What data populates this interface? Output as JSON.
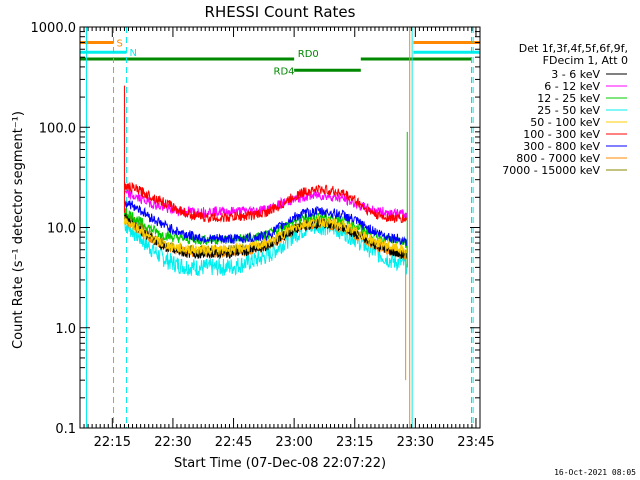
{
  "chart_data": {
    "type": "line",
    "title": "RHESSI Count Rates",
    "xlabel": "Start Time (07-Dec-08 22:07:22)",
    "ylabel": "Count Rate (s⁻¹ detector segment⁻¹)",
    "yscale": "log",
    "ylim": [
      0.1,
      1000
    ],
    "xlim_minutes": [
      0,
      99
    ],
    "x_ticks": [
      {
        "t": 8,
        "label": "22:15"
      },
      {
        "t": 23,
        "label": "22:30"
      },
      {
        "t": 38,
        "label": "22:45"
      },
      {
        "t": 53,
        "label": "23:00"
      },
      {
        "t": 68,
        "label": "23:15"
      },
      {
        "t": 83,
        "label": "23:30"
      },
      {
        "t": 98,
        "label": "23:45"
      }
    ],
    "y_ticks": [
      {
        "v": 0.1,
        "label": "0.1"
      },
      {
        "v": 1,
        "label": "1.0"
      },
      {
        "v": 10,
        "label": "10.0"
      },
      {
        "v": 100,
        "label": "100.0"
      },
      {
        "v": 1000,
        "label": "1000.0"
      }
    ],
    "time_axis_minutes": [
      11,
      14,
      17,
      20,
      23,
      26,
      29,
      32,
      35,
      38,
      41,
      44,
      47,
      50,
      53,
      56,
      59,
      62,
      65,
      68,
      71,
      74,
      77,
      80,
      81
    ],
    "series": [
      {
        "name": "3 - 6 keV",
        "color": "#000000",
        "values": [
          13,
          10,
          8.2,
          6.7,
          5.9,
          5.6,
          5.5,
          5.6,
          5.5,
          5.6,
          5.8,
          6.1,
          6.7,
          8,
          9.5,
          10.5,
          11,
          10.7,
          10,
          8.7,
          7.5,
          6.5,
          5.8,
          5.3,
          5.0
        ]
      },
      {
        "name": "6 - 12 keV",
        "color": "#ff00ff",
        "values": [
          22,
          20,
          18,
          16,
          15,
          14.5,
          14.3,
          14.4,
          14.5,
          14.5,
          14.6,
          14.8,
          15.5,
          17.5,
          19,
          20.5,
          21,
          20.5,
          19.5,
          17.5,
          15.5,
          14.5,
          14,
          13.5,
          13
        ]
      },
      {
        "name": "12 - 25 keV",
        "color": "#00cc00",
        "values": [
          15,
          12,
          10,
          8.6,
          8,
          7.7,
          7.5,
          7.6,
          7.5,
          7.6,
          7.8,
          8,
          8.6,
          10,
          11.5,
          12.5,
          13,
          12.5,
          12,
          10.5,
          9,
          8,
          7.5,
          7,
          6.8
        ]
      },
      {
        "name": "25 - 50 keV",
        "color": "#00eeee",
        "values": [
          11,
          8.5,
          6.5,
          5.1,
          4.4,
          4.1,
          4,
          4,
          4,
          4.1,
          4.4,
          4.8,
          5.4,
          6.8,
          8.4,
          9.8,
          10.4,
          10,
          9.2,
          7.8,
          6.4,
          5.4,
          4.7,
          4.4,
          4.1
        ]
      },
      {
        "name": "50 - 100 keV",
        "color": "#ffcc00",
        "values": [
          12,
          10,
          8,
          7,
          6.4,
          6.1,
          6,
          6,
          6,
          6.1,
          6.3,
          6.6,
          7.2,
          8.5,
          10,
          11,
          11.5,
          11.2,
          10.5,
          9.2,
          8,
          7,
          6.4,
          6,
          5.8
        ]
      },
      {
        "name": "100 - 300 keV",
        "color": "#ff0000",
        "values": [
          26,
          24,
          21,
          18.5,
          16,
          14,
          13,
          12.5,
          12.5,
          12.7,
          13,
          13.5,
          14.5,
          17,
          20.5,
          23,
          24,
          23.5,
          22,
          19,
          15,
          13,
          12.5,
          12.2,
          12
        ]
      },
      {
        "name": "300 - 800 keV",
        "color": "#0000ff",
        "values": [
          18,
          16,
          13,
          11,
          9.5,
          8.6,
          8,
          7.7,
          7.7,
          7.7,
          7.8,
          8,
          8.6,
          10.5,
          12.7,
          14,
          14.5,
          14,
          13.4,
          11.8,
          10,
          8.7,
          8,
          7.5,
          7.2
        ]
      },
      {
        "name": "800 - 7000 keV",
        "color": "#ff8800",
        "values": [
          12,
          10,
          8,
          6.8,
          6,
          5.7,
          5.6,
          5.6,
          5.6,
          5.7,
          5.9,
          6.2,
          6.8,
          8,
          9.4,
          10.5,
          11,
          10.5,
          9.8,
          8.5,
          7.3,
          6.4,
          5.8,
          5.4,
          5.2
        ]
      },
      {
        "name": "7000 - 15000 keV",
        "color": "#888800",
        "values": [
          14,
          11,
          8.8,
          7.2,
          6.3,
          6,
          5.9,
          6,
          5.9,
          6,
          6.2,
          6.5,
          7,
          8.4,
          9.8,
          11,
          11.4,
          11,
          10.3,
          9,
          7.8,
          6.8,
          6.1,
          5.6,
          5.4
        ]
      }
    ],
    "event_markers": [
      {
        "t": 1.6,
        "color": "#00eeee",
        "style": "solid"
      },
      {
        "t": 8.3,
        "color": "#ff8800",
        "style": "dashed"
      },
      {
        "t": 11.5,
        "color": "#00eeee",
        "style": "dashed"
      },
      {
        "t": 81.6,
        "color": "#ff8800",
        "style": "solid"
      },
      {
        "t": 82.2,
        "color": "#00eeee",
        "style": "solid"
      },
      {
        "t": 96.9,
        "color": "#ff8800",
        "style": "dashed"
      },
      {
        "t": 97.3,
        "color": "#00eeee",
        "style": "dashed"
      }
    ],
    "saa_bars": [
      {
        "label": "S",
        "color": "#ff8800",
        "level": 700,
        "segments": [
          [
            0,
            8.3
          ],
          [
            82.5,
            99
          ]
        ]
      },
      {
        "label": "N",
        "color": "#00eeee",
        "level": 560,
        "segments": [
          [
            0,
            11.5
          ],
          [
            82.5,
            99
          ]
        ]
      }
    ],
    "rd_levels": [
      {
        "label": "RD0",
        "color": "#008800",
        "level": 480,
        "segments": [
          [
            0,
            53
          ],
          [
            69.5,
            97
          ]
        ]
      },
      {
        "label": "RD4",
        "color": "#008800",
        "level": 370,
        "segments": [
          [
            53,
            69.5
          ]
        ]
      }
    ],
    "legend_header": [
      "Det 1f,3f,4f,5f,6f,9f,",
      "FDecim 1, Att 0"
    ],
    "timestamp": "16-Oct-2021 08:05"
  }
}
